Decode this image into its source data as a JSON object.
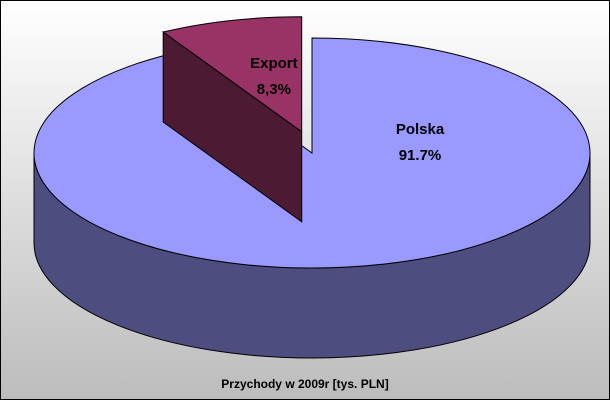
{
  "chart_data": {
    "type": "pie3d",
    "title": "Przychody w 2009r [tys. PLN]",
    "categories": [
      "Polska",
      "Export"
    ],
    "values": [
      91.7,
      8.3
    ],
    "value_labels": [
      "91.7%",
      "8,3%"
    ],
    "colors": [
      "#9999ff",
      "#993366"
    ]
  }
}
